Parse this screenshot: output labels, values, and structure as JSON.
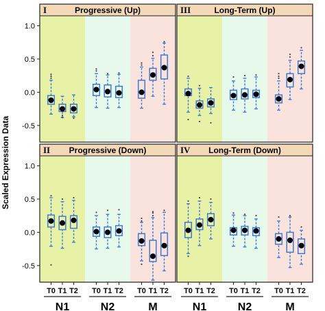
{
  "chart_data": {
    "type": "box",
    "ylabel": "Scaled Expression Data",
    "y_ticks": [
      -0.5,
      0.0,
      0.5,
      1.0
    ],
    "y_tick_labels": [
      "-0.5",
      "0.0",
      "0.5",
      "1.0"
    ],
    "ylim": [
      -0.75,
      1.15
    ],
    "x_ticks": [
      "T0",
      "T1",
      "T2"
    ],
    "groups": [
      "N1",
      "N2",
      "M"
    ],
    "band_colors": [
      "#e8f2a6",
      "#e7f9ea",
      "#f9e3dc"
    ],
    "header_color": "#f4d9b8",
    "box_color": "#3f79d8",
    "median_dot_color": "#000000",
    "panels": [
      {
        "roman": "I",
        "title": "Progressive (Up)",
        "boxes": [
          {
            "group": "N1",
            "time": "T0",
            "whisker_low": -0.33,
            "q1": -0.18,
            "median": -0.12,
            "q3": -0.05,
            "whisker_high": 0.18,
            "mean": -0.12,
            "outliers": [
              0.21,
              0.24,
              0.27
            ]
          },
          {
            "group": "N1",
            "time": "T1",
            "whisker_low": -0.38,
            "q1": -0.29,
            "median": -0.24,
            "q3": -0.18,
            "whisker_high": -0.06,
            "mean": -0.25,
            "outliers": [
              -0.38,
              -0.35
            ]
          },
          {
            "group": "N1",
            "time": "T2",
            "whisker_low": -0.37,
            "q1": -0.31,
            "median": -0.25,
            "q3": -0.18,
            "whisker_high": -0.04,
            "mean": -0.25,
            "outliers": [
              -0.39
            ]
          },
          {
            "group": "N2",
            "time": "T0",
            "whisker_low": -0.23,
            "q1": -0.05,
            "median": 0.04,
            "q3": 0.12,
            "whisker_high": 0.28,
            "mean": 0.04,
            "outliers": [
              0.32,
              0.35
            ]
          },
          {
            "group": "N2",
            "time": "T1",
            "whisker_low": -0.24,
            "q1": -0.07,
            "median": 0.02,
            "q3": 0.11,
            "whisker_high": 0.26,
            "mean": 0.01,
            "outliers": [
              0.28
            ]
          },
          {
            "group": "N2",
            "time": "T2",
            "whisker_low": -0.23,
            "q1": -0.08,
            "median": 0.0,
            "q3": 0.09,
            "whisker_high": 0.27,
            "mean": -0.01,
            "outliers": [
              0.29
            ]
          },
          {
            "group": "M",
            "time": "T0",
            "whisker_low": -0.24,
            "q1": -0.09,
            "median": 0.0,
            "q3": 0.18,
            "whisker_high": 0.38,
            "mean": 0.0,
            "outliers": [
              0.41,
              0.44
            ]
          },
          {
            "group": "M",
            "time": "T1",
            "whisker_low": -0.06,
            "q1": 0.18,
            "median": 0.26,
            "q3": 0.36,
            "whisker_high": 0.51,
            "mean": 0.26,
            "outliers": [
              0.55,
              0.6
            ]
          },
          {
            "group": "M",
            "time": "T2",
            "whisker_low": -0.18,
            "q1": 0.2,
            "median": 0.37,
            "q3": 0.56,
            "whisker_high": 0.74,
            "mean": 0.37,
            "outliers": [
              0.76
            ]
          }
        ]
      },
      {
        "roman": "III",
        "title": "Long-Term (Up)",
        "boxes": [
          {
            "group": "N1",
            "time": "T0",
            "whisker_low": -0.3,
            "q1": -0.05,
            "median": -0.02,
            "q3": 0.05,
            "whisker_high": 0.21,
            "mean": -0.02,
            "outliers": [
              -0.41,
              0.24
            ]
          },
          {
            "group": "N1",
            "time": "T1",
            "whisker_low": -0.35,
            "q1": -0.24,
            "median": -0.19,
            "q3": -0.13,
            "whisker_high": 0.06,
            "mean": -0.19,
            "outliers": [
              -0.44,
              0.1
            ]
          },
          {
            "group": "N1",
            "time": "T2",
            "whisker_low": -0.32,
            "q1": -0.22,
            "median": -0.16,
            "q3": -0.1,
            "whisker_high": 0.07,
            "mean": -0.16,
            "outliers": [
              -0.46
            ]
          },
          {
            "group": "N2",
            "time": "T0",
            "whisker_low": -0.27,
            "q1": -0.11,
            "median": -0.04,
            "q3": 0.03,
            "whisker_high": 0.17,
            "mean": -0.05,
            "outliers": [
              0.23
            ]
          },
          {
            "group": "N2",
            "time": "T1",
            "whisker_low": -0.3,
            "q1": -0.1,
            "median": -0.04,
            "q3": 0.05,
            "whisker_high": 0.21,
            "mean": -0.04,
            "outliers": [
              0.25
            ]
          },
          {
            "group": "N2",
            "time": "T2",
            "whisker_low": -0.25,
            "q1": -0.08,
            "median": -0.02,
            "q3": 0.03,
            "whisker_high": 0.23,
            "mean": -0.03,
            "outliers": [
              0.26
            ]
          },
          {
            "group": "M",
            "time": "T0",
            "whisker_low": -0.27,
            "q1": -0.16,
            "median": -0.1,
            "q3": -0.04,
            "whisker_high": 0.17,
            "mean": -0.1,
            "outliers": [
              0.21,
              0.24,
              0.28
            ]
          },
          {
            "group": "M",
            "time": "T1",
            "whisker_low": -0.11,
            "q1": 0.08,
            "median": 0.19,
            "q3": 0.28,
            "whisker_high": 0.48,
            "mean": 0.19,
            "outliers": [
              0.53,
              0.57
            ]
          },
          {
            "group": "M",
            "time": "T2",
            "whisker_low": 0.05,
            "q1": 0.28,
            "median": 0.39,
            "q3": 0.47,
            "whisker_high": 0.63,
            "mean": 0.39,
            "outliers": [
              0.67
            ]
          }
        ]
      },
      {
        "roman": "II",
        "title": "Progressive (Down)",
        "boxes": [
          {
            "group": "N1",
            "time": "T0",
            "whisker_low": -0.21,
            "q1": 0.08,
            "median": 0.17,
            "q3": 0.26,
            "whisker_high": 0.52,
            "mean": 0.17,
            "outliers": [
              -0.49,
              0.55
            ]
          },
          {
            "group": "N1",
            "time": "T1",
            "whisker_low": -0.24,
            "q1": 0.04,
            "median": 0.14,
            "q3": 0.24,
            "whisker_high": 0.46,
            "mean": 0.14,
            "outliers": [
              0.5
            ]
          },
          {
            "group": "N1",
            "time": "T2",
            "whisker_low": -0.15,
            "q1": 0.06,
            "median": 0.18,
            "q3": 0.25,
            "whisker_high": 0.48,
            "mean": 0.18,
            "outliers": [
              0.52
            ]
          },
          {
            "group": "N2",
            "time": "T0",
            "whisker_low": -0.25,
            "q1": -0.06,
            "median": 0.01,
            "q3": 0.08,
            "whisker_high": 0.25,
            "mean": 0.01,
            "outliers": [
              0.3
            ]
          },
          {
            "group": "N2",
            "time": "T1",
            "whisker_low": -0.24,
            "q1": -0.08,
            "median": 0.0,
            "q3": 0.08,
            "whisker_high": 0.27,
            "mean": 0.0,
            "outliers": [
              0.33
            ]
          },
          {
            "group": "N2",
            "time": "T2",
            "whisker_low": -0.22,
            "q1": -0.05,
            "median": 0.02,
            "q3": 0.1,
            "whisker_high": 0.27,
            "mean": 0.02,
            "outliers": [
              0.34
            ]
          },
          {
            "group": "M",
            "time": "T0",
            "whisker_low": -0.43,
            "q1": -0.2,
            "median": -0.13,
            "q3": -0.02,
            "whisker_high": 0.15,
            "mean": -0.13,
            "outliers": [
              -0.48,
              0.17,
              0.21
            ]
          },
          {
            "group": "M",
            "time": "T1",
            "whisker_low": -0.72,
            "q1": -0.44,
            "median": -0.36,
            "q3": -0.12,
            "whisker_high": 0.22,
            "mean": -0.36,
            "outliers": [
              0.25,
              0.29,
              0.31
            ]
          },
          {
            "group": "M",
            "time": "T2",
            "whisker_low": -0.58,
            "q1": -0.35,
            "median": -0.2,
            "q3": -0.01,
            "whisker_high": 0.3,
            "mean": -0.2,
            "outliers": [
              0.33
            ]
          }
        ]
      },
      {
        "roman": "IV",
        "title": "Long-Term (Down)",
        "boxes": [
          {
            "group": "N1",
            "time": "T0",
            "whisker_low": -0.32,
            "q1": -0.08,
            "median": 0.03,
            "q3": 0.15,
            "whisker_high": 0.43,
            "mean": 0.03,
            "outliers": [
              -0.36,
              0.47
            ]
          },
          {
            "group": "N1",
            "time": "T1",
            "whisker_low": -0.2,
            "q1": 0.04,
            "median": 0.11,
            "q3": 0.2,
            "whisker_high": 0.47,
            "mean": 0.11,
            "outliers": [
              0.52
            ]
          },
          {
            "group": "N1",
            "time": "T2",
            "whisker_low": -0.1,
            "q1": 0.1,
            "median": 0.19,
            "q3": 0.28,
            "whisker_high": 0.45,
            "mean": 0.19,
            "outliers": [
              0.5
            ]
          },
          {
            "group": "N2",
            "time": "T0",
            "whisker_low": -0.21,
            "q1": -0.04,
            "median": 0.03,
            "q3": 0.07,
            "whisker_high": 0.26,
            "mean": 0.03,
            "outliers": [
              0.29
            ]
          },
          {
            "group": "N2",
            "time": "T1",
            "whisker_low": -0.22,
            "q1": -0.04,
            "median": 0.03,
            "q3": 0.09,
            "whisker_high": 0.25,
            "mean": 0.03,
            "outliers": [
              0.27
            ]
          },
          {
            "group": "N2",
            "time": "T2",
            "whisker_low": -0.24,
            "q1": -0.05,
            "median": 0.02,
            "q3": 0.07,
            "whisker_high": 0.2,
            "mean": 0.02,
            "outliers": [
              0.25
            ]
          },
          {
            "group": "M",
            "time": "T0",
            "whisker_low": -0.38,
            "q1": -0.18,
            "median": -0.1,
            "q3": -0.02,
            "whisker_high": 0.17,
            "mean": -0.1,
            "outliers": [
              0.23
            ]
          },
          {
            "group": "M",
            "time": "T1",
            "whisker_low": -0.53,
            "q1": -0.3,
            "median": -0.12,
            "q3": 0.0,
            "whisker_high": 0.23,
            "mean": -0.12,
            "outliers": [
              0.25
            ]
          },
          {
            "group": "M",
            "time": "T2",
            "whisker_low": -0.48,
            "q1": -0.32,
            "median": -0.2,
            "q3": -0.1,
            "whisker_high": 0.03,
            "mean": -0.2,
            "outliers": [
              0.08
            ]
          }
        ]
      }
    ]
  }
}
